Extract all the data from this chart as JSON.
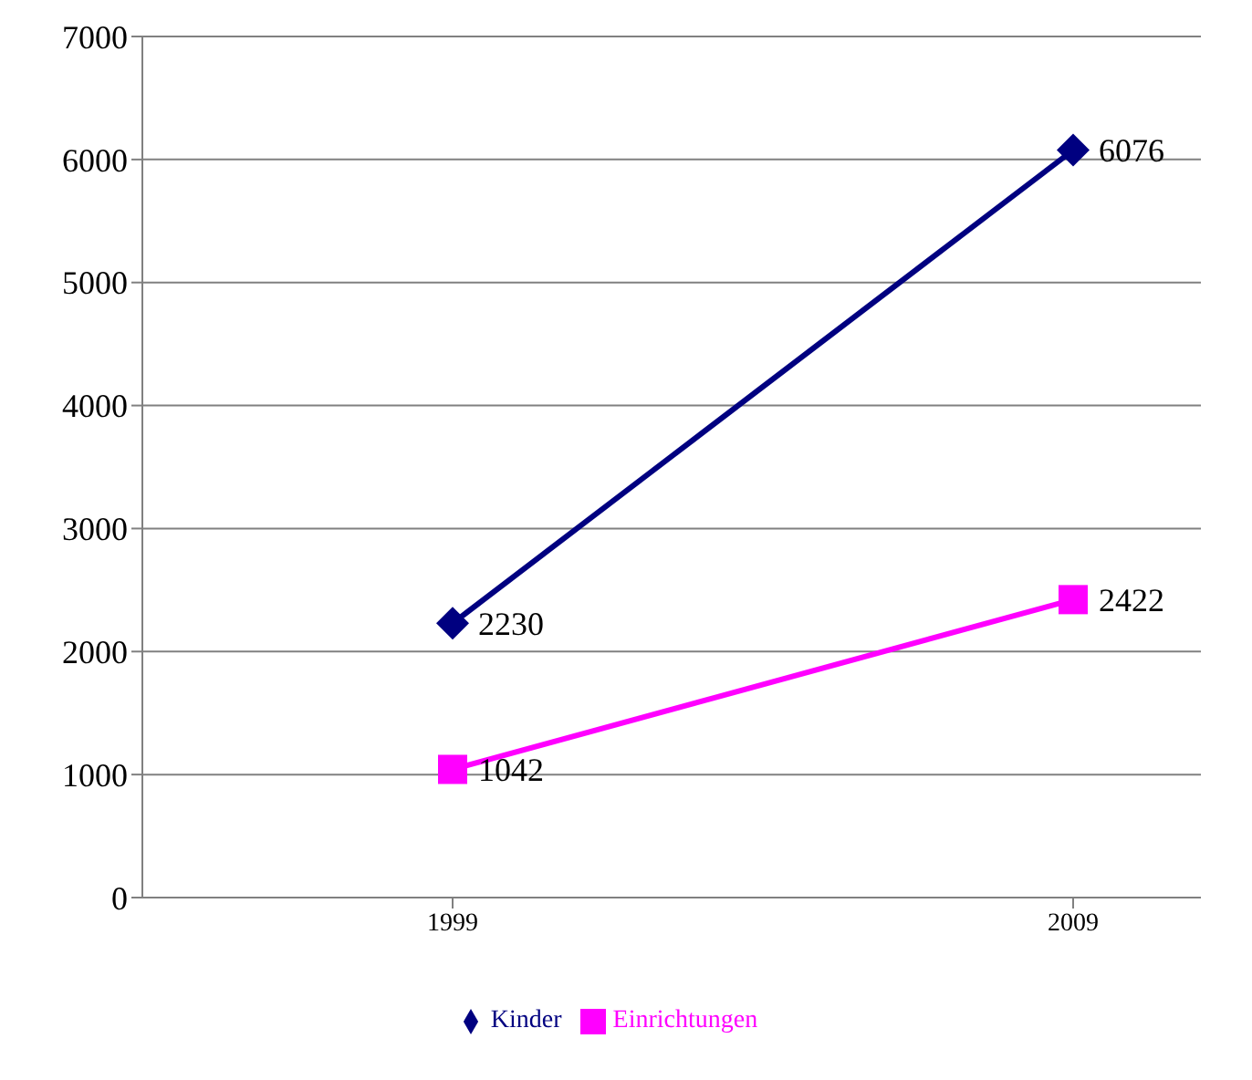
{
  "chart_data": {
    "type": "line",
    "categories": [
      "1999",
      "2009"
    ],
    "series": [
      {
        "name": "Kinder",
        "color": "#000080",
        "values": [
          2230,
          6076
        ],
        "marker": "diamond"
      },
      {
        "name": "Einrichtungen",
        "color": "#ff00ff",
        "values": [
          1042,
          2422
        ],
        "marker": "square"
      }
    ],
    "ylim": [
      0,
      7000
    ],
    "yticks": [
      0,
      1000,
      2000,
      3000,
      4000,
      5000,
      6000,
      7000
    ],
    "grid": "y",
    "legend": "bottom",
    "data_labels": true,
    "line_style": "solid"
  }
}
